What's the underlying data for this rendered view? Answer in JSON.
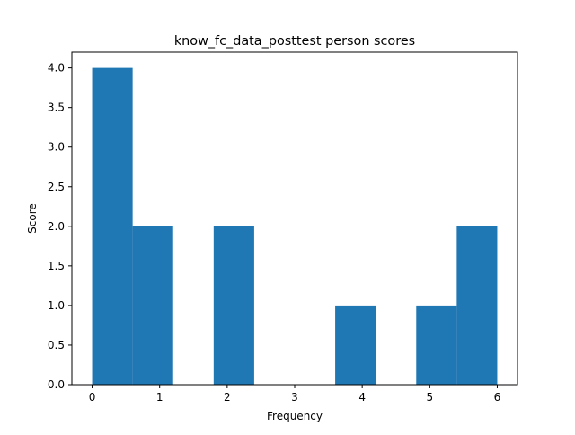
{
  "chart_data": {
    "type": "bar",
    "title": "know_fc_data_posttest person scores",
    "xlabel": "Frequency",
    "ylabel": "Score",
    "xlim": [
      -0.3,
      6.3
    ],
    "ylim": [
      0,
      4.2
    ],
    "x_ticks": [
      0,
      1,
      2,
      3,
      4,
      5,
      6
    ],
    "y_ticks": [
      0.0,
      0.5,
      1.0,
      1.5,
      2.0,
      2.5,
      3.0,
      3.5,
      4.0
    ],
    "bin_edges": [
      0.0,
      0.6,
      1.2,
      1.8,
      2.4,
      3.0,
      3.6,
      4.2,
      4.8,
      5.4,
      6.0
    ],
    "values": [
      4,
      2,
      0,
      2,
      0,
      0,
      1,
      0,
      1,
      2
    ],
    "bar_color": "#1f77b4",
    "grid": false,
    "legend": "none"
  }
}
